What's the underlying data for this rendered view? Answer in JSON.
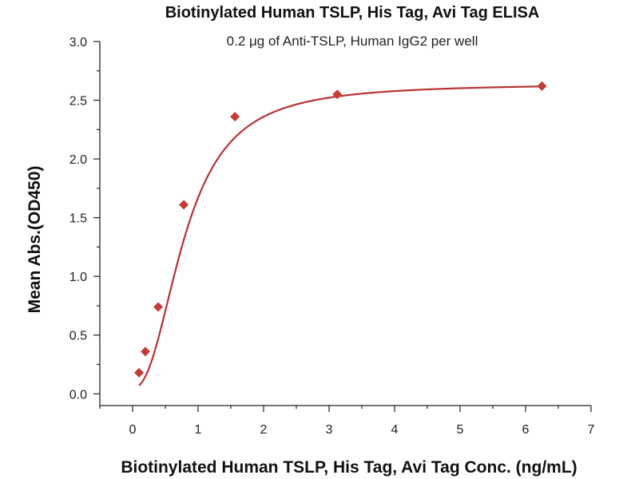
{
  "chart_data": {
    "type": "scatter",
    "title": "Biotinylated Human TSLP, His Tag, Avi Tag ELISA",
    "subtitle": "0.2 μg of Anti-TSLP, Human IgG2 per well",
    "xlabel": "Biotinylated Human TSLP, His Tag, Avi Tag Conc. (ng/mL)",
    "ylabel": "Mean Abs.(OD450)",
    "xlim": [
      -0.5,
      7
    ],
    "ylim": [
      -0.1,
      3.0
    ],
    "x_ticks": [
      0,
      1,
      2,
      3,
      4,
      5,
      6,
      7
    ],
    "x_tick_labels": [
      "0",
      "1",
      "2",
      "3",
      "4",
      "5",
      "6",
      "7"
    ],
    "y_ticks": [
      0.0,
      0.5,
      1.0,
      1.5,
      2.0,
      2.5,
      3.0
    ],
    "y_tick_labels": [
      "0.0",
      "0.5",
      "1.0",
      "1.5",
      "2.0",
      "2.5",
      "3.0"
    ],
    "grid": false,
    "series": [
      {
        "color": "#c23a3a",
        "marker": "diamond",
        "points": [
          {
            "x": 0.098,
            "y": 0.18
          },
          {
            "x": 0.195,
            "y": 0.36
          },
          {
            "x": 0.391,
            "y": 0.74
          },
          {
            "x": 0.781,
            "y": 1.61
          },
          {
            "x": 1.5625,
            "y": 2.36
          },
          {
            "x": 3.125,
            "y": 2.55
          },
          {
            "x": 6.25,
            "y": 2.62
          }
        ],
        "fit_curve": true
      }
    ]
  }
}
